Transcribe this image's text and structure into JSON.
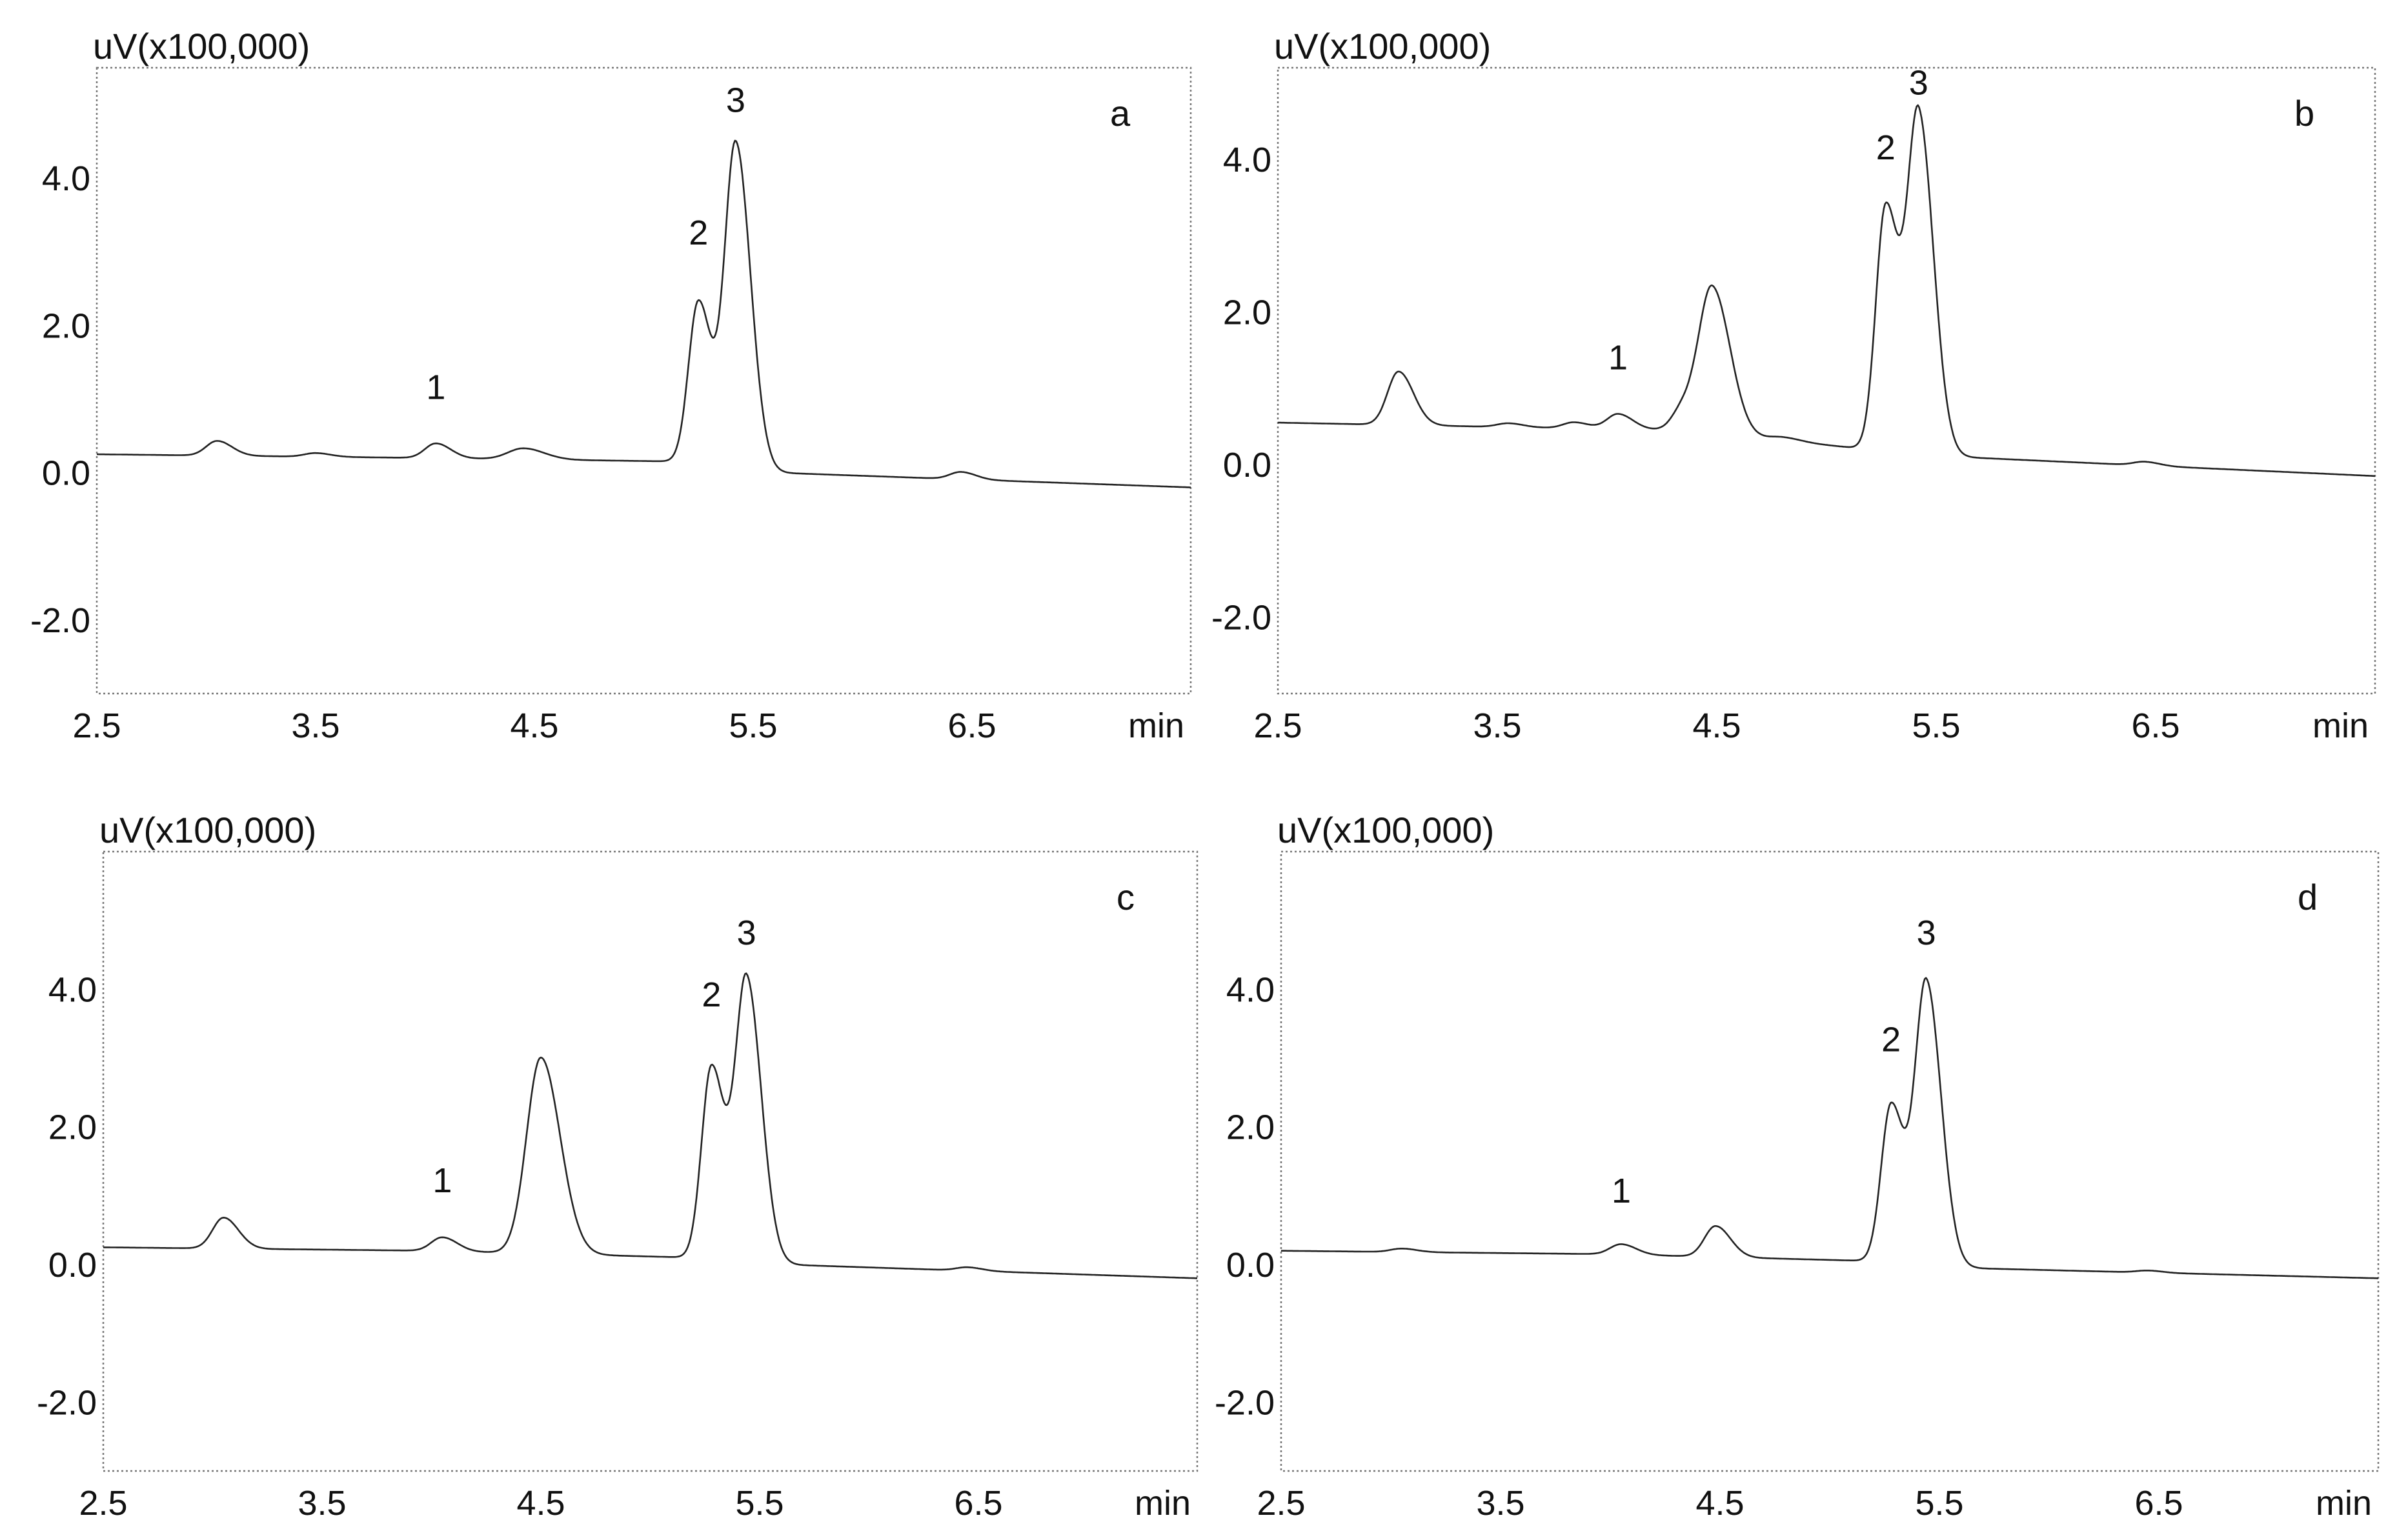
{
  "chart_data": [
    {
      "type": "line",
      "panel_label": "a",
      "ylabel": "uV(x100,000)",
      "xunit": "min",
      "xlim": [
        2.5,
        7.5
      ],
      "ylim": [
        -3.0,
        5.5
      ],
      "xticks": [
        "2.5",
        "3.5",
        "4.5",
        "5.5",
        "6.5"
      ],
      "yticks": [
        "4.0",
        "2.0",
        "0.0",
        "-2.0"
      ],
      "grid": false,
      "baseline": [
        [
          2.5,
          0.25
        ],
        [
          4.0,
          0.2
        ],
        [
          5.2,
          0.15
        ],
        [
          5.6,
          0.0
        ],
        [
          7.5,
          -0.2
        ]
      ],
      "peaks": [
        [
          3.05,
          0.2,
          0.05
        ],
        [
          3.5,
          0.05,
          0.05
        ],
        [
          4.05,
          0.2,
          0.05
        ],
        [
          4.45,
          0.15,
          0.07
        ],
        [
          5.25,
          2.2,
          0.045
        ],
        [
          5.42,
          4.4,
          0.05
        ],
        [
          6.45,
          0.1,
          0.05
        ]
      ],
      "peak_labels": [
        {
          "text": "1",
          "x": 4.05,
          "y": 1.0
        },
        {
          "text": "2",
          "x": 5.25,
          "y": 3.1
        },
        {
          "text": "3",
          "x": 5.42,
          "y": 4.9
        }
      ]
    },
    {
      "type": "line",
      "panel_label": "b",
      "ylabel": "uV(x100,000)",
      "xunit": "min",
      "xlim": [
        2.5,
        7.5
      ],
      "ylim": [
        -3.0,
        5.2
      ],
      "xticks": [
        "2.5",
        "3.5",
        "4.5",
        "5.5",
        "6.5"
      ],
      "yticks": [
        "4.0",
        "2.0",
        "0.0",
        "-2.0"
      ],
      "grid": false,
      "baseline": [
        [
          2.5,
          0.55
        ],
        [
          4.3,
          0.45
        ],
        [
          5.2,
          0.2
        ],
        [
          5.6,
          0.1
        ],
        [
          7.5,
          -0.15
        ]
      ],
      "peaks": [
        [
          3.05,
          0.7,
          0.05
        ],
        [
          3.55,
          0.05,
          0.05
        ],
        [
          3.85,
          0.08,
          0.05
        ],
        [
          4.05,
          0.2,
          0.05
        ],
        [
          4.35,
          0.3,
          0.05
        ],
        [
          4.48,
          1.9,
          0.06
        ],
        [
          4.8,
          0.05,
          0.06
        ],
        [
          5.27,
          3.2,
          0.045
        ],
        [
          5.42,
          4.4,
          0.05
        ],
        [
          6.45,
          0.05,
          0.05
        ]
      ],
      "peak_labels": [
        {
          "text": "1",
          "x": 4.05,
          "y": 1.25
        },
        {
          "text": "2",
          "x": 5.27,
          "y": 4.0
        },
        {
          "text": "3",
          "x": 5.42,
          "y": 4.85
        }
      ]
    },
    {
      "type": "line",
      "panel_label": "c",
      "ylabel": "uV(x100,000)",
      "xunit": "min",
      "xlim": [
        2.5,
        7.5
      ],
      "ylim": [
        -3.0,
        6.0
      ],
      "xticks": [
        "2.5",
        "3.5",
        "4.5",
        "5.5",
        "6.5"
      ],
      "yticks": [
        "4.0",
        "2.0",
        "0.0",
        "-2.0"
      ],
      "grid": false,
      "baseline": [
        [
          2.5,
          0.25
        ],
        [
          4.0,
          0.2
        ],
        [
          5.2,
          0.1
        ],
        [
          5.6,
          0.0
        ],
        [
          7.5,
          -0.2
        ]
      ],
      "peaks": [
        [
          3.05,
          0.45,
          0.05
        ],
        [
          4.05,
          0.2,
          0.05
        ],
        [
          4.5,
          2.85,
          0.065
        ],
        [
          5.28,
          2.8,
          0.045
        ],
        [
          5.44,
          4.1,
          0.05
        ],
        [
          6.45,
          0.05,
          0.05
        ]
      ],
      "peak_labels": [
        {
          "text": "1",
          "x": 4.05,
          "y": 1.05
        },
        {
          "text": "2",
          "x": 5.28,
          "y": 3.75
        },
        {
          "text": "3",
          "x": 5.44,
          "y": 4.65
        }
      ]
    },
    {
      "type": "line",
      "panel_label": "d",
      "ylabel": "uV(x100,000)",
      "xunit": "min",
      "xlim": [
        2.5,
        7.5
      ],
      "ylim": [
        -3.0,
        6.0
      ],
      "xticks": [
        "2.5",
        "3.5",
        "4.5",
        "5.5",
        "6.5"
      ],
      "yticks": [
        "4.0",
        "2.0",
        "0.0",
        "-2.0"
      ],
      "grid": false,
      "baseline": [
        [
          2.5,
          0.2
        ],
        [
          4.0,
          0.15
        ],
        [
          5.2,
          0.05
        ],
        [
          5.6,
          -0.05
        ],
        [
          7.5,
          -0.2
        ]
      ],
      "peaks": [
        [
          3.05,
          0.05,
          0.05
        ],
        [
          4.05,
          0.15,
          0.05
        ],
        [
          4.48,
          0.45,
          0.05
        ],
        [
          5.28,
          2.3,
          0.045
        ],
        [
          5.44,
          4.1,
          0.05
        ],
        [
          6.45,
          0.03,
          0.05
        ]
      ],
      "peak_labels": [
        {
          "text": "1",
          "x": 4.05,
          "y": 0.9
        },
        {
          "text": "2",
          "x": 5.28,
          "y": 3.1
        },
        {
          "text": "3",
          "x": 5.44,
          "y": 4.65
        }
      ]
    }
  ]
}
